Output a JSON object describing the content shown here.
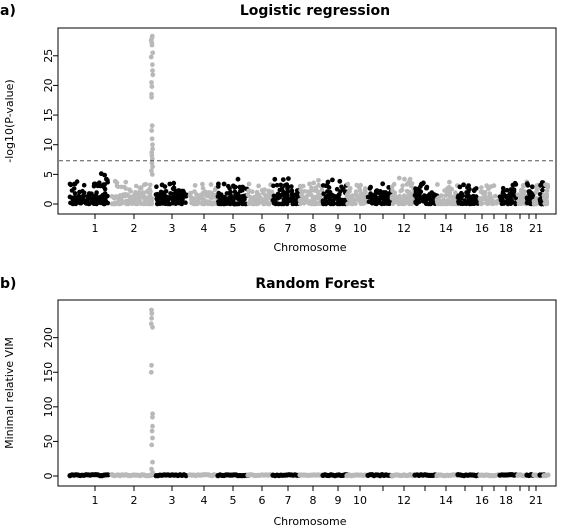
{
  "chart_data": [
    {
      "panel_label": "a)",
      "type": "scatter",
      "title": "Logistic regression",
      "xlabel": "Chromosome",
      "ylabel": "-log10(P-value)",
      "ylim": [
        0,
        28
      ],
      "yticks": [
        0,
        5,
        10,
        15,
        20,
        25
      ],
      "threshold": 7.3,
      "xtick_labels": [
        "1",
        "2",
        "3",
        "4",
        "5",
        "6",
        "7",
        "8",
        "9",
        "10",
        "12",
        "14",
        "16",
        "18",
        "21"
      ],
      "colors": {
        "odd": "#000000",
        "even": "#b9b9b9",
        "threshold": "#555555"
      },
      "background_max_by_chromosome": [
        5.2,
        4.4,
        3.8,
        3.5,
        4.2,
        3.5,
        4.3,
        4.2,
        4.2,
        3.7,
        3.5,
        4.9,
        3.9,
        3.8,
        3.6,
        3.6,
        3.7,
        3.9,
        3.5,
        3.6,
        3.9,
        3.3
      ],
      "peak": {
        "chromosome": 2,
        "values": [
          28.3,
          28.0,
          27.6,
          27.2,
          26.8,
          25.5,
          24.8,
          23.5,
          22.5,
          21.8,
          20.5,
          19.8,
          18.5,
          18.0,
          13.2,
          12.4,
          11.0,
          10.0,
          9.3,
          8.7,
          8.2,
          7.6,
          6.9,
          6.3,
          5.6,
          5.0
        ]
      }
    },
    {
      "panel_label": "b)",
      "type": "scatter",
      "title": "Random Forest",
      "xlabel": "Chromosome",
      "ylabel": "Minimal relative VIM",
      "ylim": [
        0,
        240
      ],
      "yticks": [
        0,
        50,
        100,
        150,
        200
      ],
      "xtick_labels": [
        "1",
        "2",
        "3",
        "4",
        "5",
        "6",
        "7",
        "8",
        "9",
        "10",
        "12",
        "14",
        "16",
        "18",
        "21"
      ],
      "colors": {
        "odd": "#000000",
        "even": "#b9b9b9"
      },
      "peak": {
        "chromosome": 2,
        "values": [
          240,
          235,
          228,
          220,
          215,
          160,
          150,
          90,
          85,
          72,
          65,
          55,
          45,
          20,
          10,
          5,
          2
        ]
      }
    }
  ]
}
